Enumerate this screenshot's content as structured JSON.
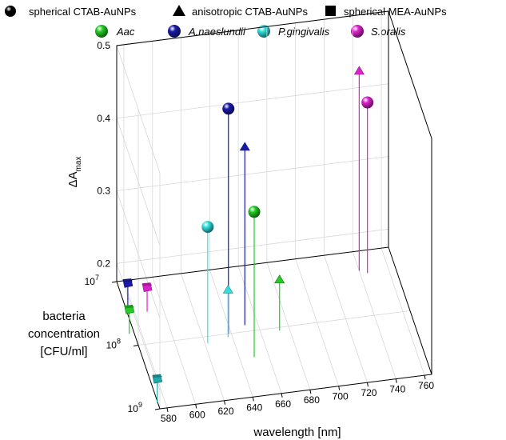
{
  "chart_data": {
    "type": "scatter",
    "title": "",
    "xlabel": "wavelength [nm]",
    "ylabel_lines": [
      "bacteria",
      "concentration",
      "[CFU/ml]"
    ],
    "zlabel_main": "ΔA",
    "zlabel_sub": "max",
    "x_ticks": [
      "580",
      "600",
      "620",
      "640",
      "660",
      "680",
      "700",
      "720",
      "740",
      "760"
    ],
    "xlim": [
      575,
      765
    ],
    "y_ticks": [
      {
        "base": "10",
        "exp": "7",
        "value": 7
      },
      {
        "base": "10",
        "exp": "8",
        "value": 8
      },
      {
        "base": "10",
        "exp": "9",
        "value": 9
      }
    ],
    "ylim": [
      7,
      9
    ],
    "z_ticks": [
      "0.2",
      "0.3",
      "0.4",
      "0.5"
    ],
    "zlim": [
      0.175,
      0.5
    ],
    "legend": {
      "shapes": [
        {
          "label": "spherical CTAB-AuNPs",
          "marker": "sphere"
        },
        {
          "label": "anisotropic CTAB-AuNPs",
          "marker": "triangle"
        },
        {
          "label": "spherical MEA-AuNPs",
          "marker": "square"
        }
      ],
      "bacteria": [
        {
          "label": "Aac",
          "color": "#22cc22"
        },
        {
          "label": "A.naeslundii",
          "color": "#1a1aaa"
        },
        {
          "label": "P.gingivalis",
          "color": "#33dddd"
        },
        {
          "label": "S.oralis",
          "color": "#dd22cc"
        }
      ]
    },
    "points": [
      {
        "series": "A.naeslundii",
        "marker": "sphere",
        "x": 638,
        "y": 8.0,
        "z": 0.485,
        "color": "#1a1aaa"
      },
      {
        "series": "A.naeslundii",
        "marker": "triangle",
        "x": 651,
        "y": 7.9,
        "z": 0.42,
        "color": "#1a1aaa"
      },
      {
        "series": "Aac",
        "marker": "sphere",
        "x": 650,
        "y": 8.4,
        "z": 0.375,
        "color": "#22cc22"
      },
      {
        "series": "P.gingivalis",
        "marker": "sphere",
        "x": 622,
        "y": 8.1,
        "z": 0.335,
        "color": "#33dddd"
      },
      {
        "series": "P.gingivalis",
        "marker": "triangle",
        "x": 637,
        "y": 8.05,
        "z": 0.24,
        "color": "#33dddd"
      },
      {
        "series": "Aac",
        "marker": "triangle",
        "x": 673,
        "y": 8.05,
        "z": 0.245,
        "color": "#22cc22"
      },
      {
        "series": "S.oralis",
        "marker": "triangle",
        "x": 740,
        "y": 7.3,
        "z": 0.45,
        "color": "#dd22cc"
      },
      {
        "series": "S.oralis",
        "marker": "sphere",
        "x": 745,
        "y": 7.35,
        "z": 0.41,
        "color": "#dd22cc"
      },
      {
        "series": "A.naeslundii",
        "marker": "square",
        "x": 582,
        "y": 7.05,
        "z": 0.175,
        "color": "#1a1aaa"
      },
      {
        "series": "S.oralis",
        "marker": "square",
        "x": 594,
        "y": 7.15,
        "z": 0.175,
        "color": "#dd22cc"
      },
      {
        "series": "Aac",
        "marker": "square",
        "x": 577,
        "y": 7.45,
        "z": 0.175,
        "color": "#22cc22"
      },
      {
        "series": "P.gingivalis",
        "marker": "square",
        "x": 580,
        "y": 8.55,
        "z": 0.175,
        "color": "#22aaaa"
      }
    ]
  }
}
